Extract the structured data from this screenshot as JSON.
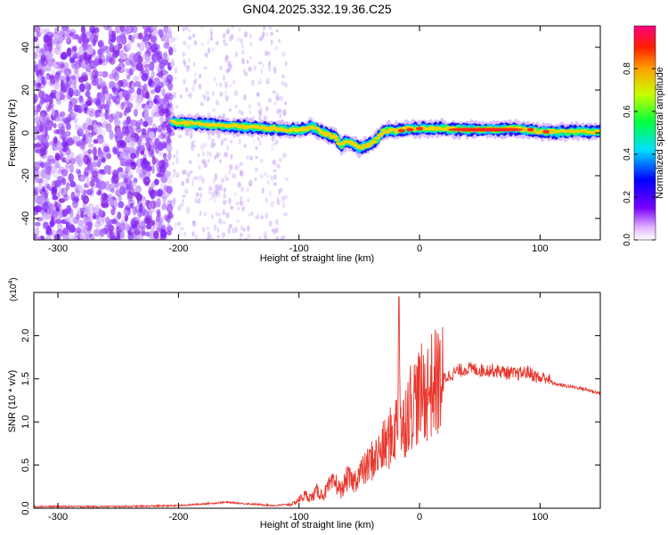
{
  "page": {
    "title": "GN04.2025.332.19.36.C25"
  },
  "chart_data": [
    {
      "type": "heatmap",
      "title": "GN04.2025.332.19.36.C25",
      "xlabel": "Height of straight line (km)",
      "ylabel": "Frequency (Hz)",
      "xlim": [
        -320,
        150
      ],
      "ylim": [
        -50,
        50
      ],
      "x_ticks": [
        -300,
        -200,
        -100,
        0,
        100
      ],
      "y_ticks": [
        -40,
        -20,
        0,
        20,
        40
      ],
      "colorbar": {
        "label": "Normalized spectral amplitude",
        "range": [
          0,
          1
        ],
        "ticks": [
          0.0,
          0.2,
          0.4,
          0.6,
          0.8
        ]
      },
      "ridge": {
        "x": [
          -205,
          -180,
          -150,
          -120,
          -100,
          -90,
          -80,
          -70,
          -65,
          -60,
          -55,
          -50,
          -45,
          -40,
          -35,
          -30,
          -20,
          -10,
          0,
          20,
          40,
          60,
          80,
          100,
          120,
          150
        ],
        "freq": [
          5,
          4,
          3,
          2,
          1,
          3,
          0,
          -2,
          -6,
          -4,
          -5,
          -7,
          -6,
          -5,
          -3,
          1,
          1,
          2,
          2,
          2,
          1.5,
          1.5,
          2,
          0.5,
          0.5,
          0.5
        ]
      }
    },
    {
      "type": "line",
      "xlabel": "Height of straight line (km)",
      "ylabel": "SNR (10 * v/v)",
      "y_multiplier": "(x10",
      "y_multiplier_exp": "4",
      "xlim": [
        -320,
        150
      ],
      "ylim": [
        0,
        2.5
      ],
      "x_ticks": [
        -300,
        -200,
        -100,
        0,
        100
      ],
      "y_ticks": [
        0.0,
        0.5,
        1.0,
        1.5,
        2.0
      ],
      "series": [
        {
          "color": "#e8382e",
          "x": [
            -320,
            -250,
            -200,
            -180,
            -160,
            -140,
            -120,
            -105,
            -100,
            -95,
            -90,
            -85,
            -80,
            -75,
            -70,
            -65,
            -60,
            -55,
            -50,
            -45,
            -40,
            -35,
            -30,
            -25,
            -20,
            -18,
            -17,
            -16,
            -15,
            -12,
            -10,
            -5,
            0,
            5,
            10,
            20,
            30,
            40,
            50,
            60,
            70,
            80,
            90,
            100,
            105,
            110,
            120,
            130,
            140,
            150
          ],
          "values": [
            0.02,
            0.02,
            0.03,
            0.05,
            0.07,
            0.05,
            0.03,
            0.05,
            0.1,
            0.15,
            0.12,
            0.2,
            0.15,
            0.25,
            0.3,
            0.2,
            0.35,
            0.3,
            0.4,
            0.45,
            0.55,
            0.6,
            0.7,
            0.8,
            0.9,
            1.1,
            2.45,
            1.3,
            0.8,
            1.05,
            1.15,
            1.25,
            1.3,
            1.35,
            1.42,
            1.5,
            1.58,
            1.62,
            1.6,
            1.6,
            1.58,
            1.55,
            1.58,
            1.5,
            1.52,
            1.45,
            1.42,
            1.4,
            1.37,
            1.33
          ]
        }
      ]
    }
  ]
}
